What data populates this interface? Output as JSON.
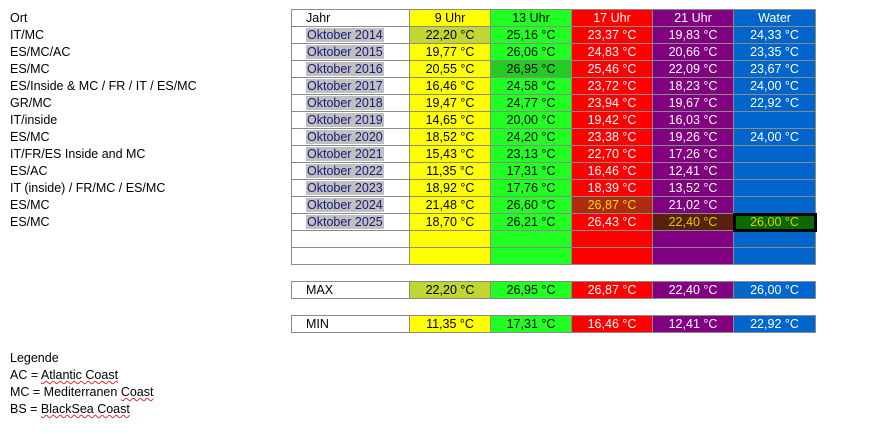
{
  "locations": {
    "header": "Ort",
    "items": [
      "IT/MC",
      "ES/MC/AC",
      "ES/MC",
      "ES/Inside & MC / FR / IT / ES/MC",
      "GR/MC",
      "IT/inside",
      "ES/MC",
      "IT/FR/ES Inside and MC",
      "ES/AC",
      "IT (inside) / FR/MC / ES/MC",
      "ES/MC",
      "ES/MC"
    ]
  },
  "table": {
    "headers": [
      "Jahr",
      "9 Uhr",
      "13 Uhr",
      "17 Uhr",
      "21 Uhr",
      "Water"
    ],
    "rows": [
      [
        "Oktober 2014",
        "22,20 °C",
        "25,16 °C",
        "23,37 °C",
        "19,83 °C",
        "24,33 °C"
      ],
      [
        "Oktober 2015",
        "19,77 °C",
        "26,06 °C",
        "24,83 °C",
        "20,66 °C",
        "23,35 °C"
      ],
      [
        "Oktober 2016",
        "20,55 °C",
        "26,95 °C",
        "25,46 °C",
        "22,09 °C",
        "23,67 °C"
      ],
      [
        "Oktober 2017",
        "16,46 °C",
        "24,58 °C",
        "23,72 °C",
        "18,23 °C",
        "24,00 °C"
      ],
      [
        "Oktober 2018",
        "19,47 °C",
        "24,77 °C",
        "23,94 °C",
        "19,67 °C",
        "22,92 °C"
      ],
      [
        "Oktober 2019",
        "14,65 °C",
        "20,00 °C",
        "19,42 °C",
        "16,03 °C",
        ""
      ],
      [
        "Oktober 2020",
        "18,52 °C",
        "24,20 °C",
        "23,38 °C",
        "19,26 °C",
        "24,00 °C"
      ],
      [
        "Oktober 2021",
        "15,43 °C",
        "23,13 °C",
        "22,70 °C",
        "17,26 °C",
        ""
      ],
      [
        "Oktober 2022",
        "11,35 °C",
        "17,31 °C",
        "16,46 °C",
        "12,41 °C",
        ""
      ],
      [
        "Oktober 2023",
        "18,92 °C",
        "17,76 °C",
        "18,39 °C",
        "13,52 °C",
        ""
      ],
      [
        "Oktober 2024",
        "21,48 °C",
        "26,60 °C",
        "26,87 °C",
        "21,02 °C",
        ""
      ],
      [
        "Oktober 2025",
        "18,70 °C",
        "26,21 °C",
        "26,43 °C",
        "22,40 °C",
        "26,00 °C"
      ],
      [
        "",
        "",
        "",
        "",
        "",
        ""
      ],
      [
        "",
        "",
        "",
        "",
        "",
        ""
      ]
    ],
    "max": [
      "MAX",
      "22,20 °C",
      "26,95 °C",
      "26,87 °C",
      "22,40 °C",
      "26,00 °C"
    ],
    "min": [
      "MIN",
      "11,35 °C",
      "17,31 °C",
      "16,46 °C",
      "12,41 °C",
      "22,92 °C"
    ]
  },
  "legend": {
    "title": "Legende",
    "items": [
      [
        "AC = ",
        "Atlantic Coast"
      ],
      [
        "MC = Mediterranen ",
        "Coast"
      ],
      [
        "BS = ",
        "BlackSea Coast"
      ]
    ]
  }
}
